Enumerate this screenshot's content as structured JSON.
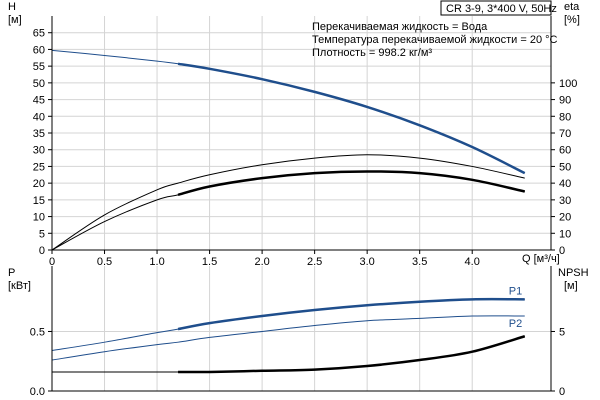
{
  "chart_data": [
    {
      "type": "line",
      "title": "CR 3-9, 3*400 V, 50Hz",
      "annotations": [
        "Перекачиваемая жидкость = Вода",
        "Температура перекачиваемой жидкости = 20 °C",
        "Плотность = 998.2 кг/м³"
      ],
      "xlabel": "Q [м³/ч]",
      "ylabel_left": "H [м]",
      "ylabel_right": "eta [%]",
      "xlim": [
        0,
        4.75
      ],
      "ylim_left": [
        0,
        70
      ],
      "ylim_right": [
        0,
        140
      ],
      "x_ticks": [
        "0",
        "0.5",
        "1.0",
        "1.5",
        "2.0",
        "2.5",
        "3.0",
        "3.5",
        "4.0"
      ],
      "y_left_ticks": [
        "0",
        "5",
        "10",
        "15",
        "20",
        "25",
        "30",
        "35",
        "40",
        "45",
        "50",
        "55",
        "60",
        "65"
      ],
      "y_right_ticks": [
        "0",
        "10",
        "20",
        "30",
        "40",
        "50",
        "60",
        "70",
        "80",
        "90",
        "100"
      ],
      "grid": true,
      "series": [
        {
          "role": "H",
          "axis": "left",
          "color": "#1f4e8c",
          "x": [
            0,
            0.5,
            1.0,
            1.2,
            1.5,
            2.0,
            2.5,
            3.0,
            3.5,
            4.0,
            4.5
          ],
          "y": [
            59.7,
            58.2,
            56.5,
            55.7,
            54.2,
            51.1,
            47.3,
            42.8,
            37.3,
            30.8,
            23.0
          ],
          "bold_from_x": 1.2
        },
        {
          "role": "eta",
          "axis": "right",
          "color": "#000000",
          "x": [
            0,
            0.5,
            1.0,
            1.2,
            1.5,
            2.0,
            2.5,
            3.0,
            3.5,
            4.0,
            4.5
          ],
          "y": [
            0,
            21,
            36,
            40,
            45,
            51,
            55,
            57,
            55,
            50,
            43
          ],
          "bold_from_x": null
        },
        {
          "role": "eta-alt",
          "axis": "right",
          "color": "#000000",
          "x": [
            0,
            0.5,
            1.0,
            1.2,
            1.5,
            2.0,
            2.5,
            3.0,
            3.5,
            4.0,
            4.5
          ],
          "y": [
            0,
            17,
            30,
            33,
            38,
            43,
            46,
            47,
            46,
            42,
            35
          ],
          "bold_from_x": 1.2
        }
      ]
    },
    {
      "type": "line",
      "xlim": [
        0,
        4.75
      ],
      "ylabel_left": "P [кВт]",
      "ylabel_right": "NPSH [м]",
      "ylim_left": [
        0,
        1.05
      ],
      "ylim_right": [
        0,
        10.5
      ],
      "y_left_ticks": [
        "0.0",
        "0.5"
      ],
      "y_right_ticks": [
        "0",
        "5"
      ],
      "grid": true,
      "series": [
        {
          "name": "P1",
          "axis": "left",
          "color": "#1f4e8c",
          "x": [
            0,
            0.5,
            1.0,
            1.2,
            1.5,
            2.0,
            2.5,
            3.0,
            3.5,
            4.0,
            4.5
          ],
          "y": [
            0.34,
            0.41,
            0.49,
            0.52,
            0.57,
            0.63,
            0.68,
            0.72,
            0.75,
            0.77,
            0.77
          ],
          "bold_from_x": 1.2
        },
        {
          "name": "P2",
          "axis": "left",
          "color": "#1f4e8c",
          "x": [
            0,
            0.5,
            1.0,
            1.2,
            1.5,
            2.0,
            2.5,
            3.0,
            3.5,
            4.0,
            4.5
          ],
          "y": [
            0.26,
            0.33,
            0.39,
            0.41,
            0.45,
            0.5,
            0.55,
            0.59,
            0.61,
            0.63,
            0.63
          ],
          "bold_from_x": null
        },
        {
          "name": "NPSH",
          "axis": "right",
          "color": "#000000",
          "x": [
            0,
            0.5,
            1.0,
            1.2,
            1.5,
            2.0,
            2.5,
            3.0,
            3.5,
            4.0,
            4.5
          ],
          "y": [
            1.6,
            1.6,
            1.6,
            1.6,
            1.6,
            1.7,
            1.8,
            2.1,
            2.6,
            3.3,
            4.6
          ],
          "bold_from_x": 1.2
        }
      ]
    }
  ]
}
